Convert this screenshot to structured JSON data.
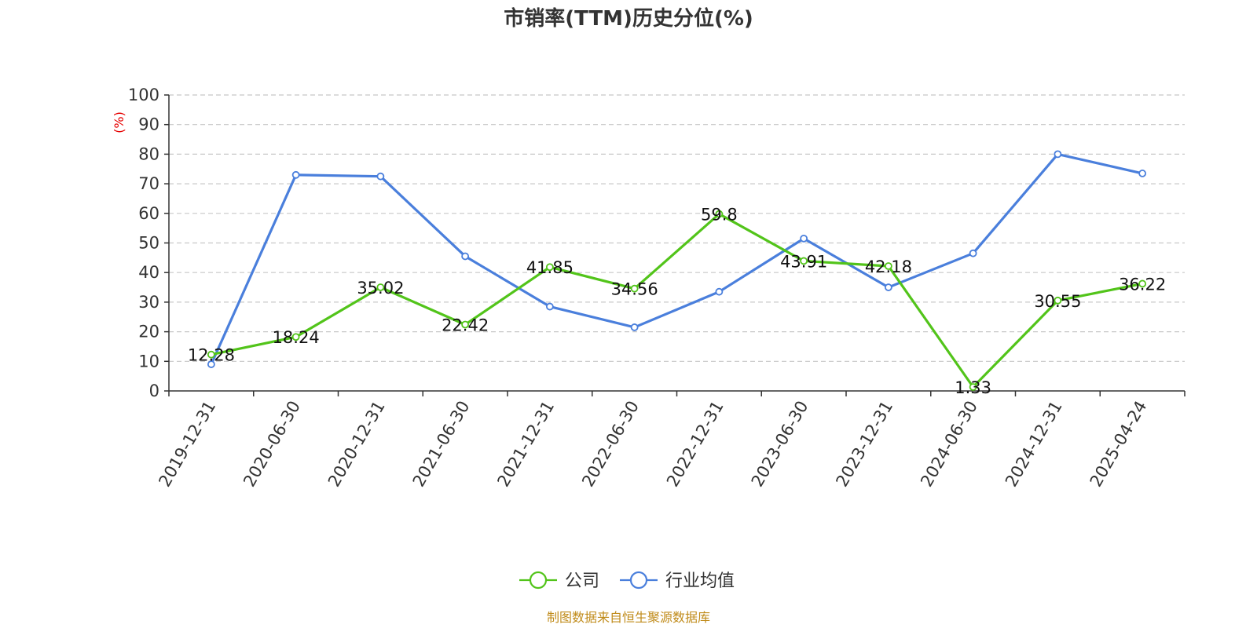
{
  "chart_data": {
    "type": "line",
    "title": "市销率(TTM)历史分位(%)",
    "ylabel": "(%)",
    "xlabel": "",
    "ylim": [
      0,
      100
    ],
    "yticks": [
      0,
      10,
      20,
      30,
      40,
      50,
      60,
      70,
      80,
      90,
      100
    ],
    "categories": [
      "2019-12-31",
      "2020-06-30",
      "2020-12-31",
      "2021-06-30",
      "2021-12-31",
      "2022-06-30",
      "2022-12-31",
      "2023-06-30",
      "2023-12-31",
      "2024-06-30",
      "2024-12-31",
      "2025-04-24"
    ],
    "grid": true,
    "legend_position": "bottom",
    "series": [
      {
        "name": "公司",
        "color": "#52c41a",
        "values": [
          12.28,
          18.24,
          35.02,
          22.42,
          41.85,
          34.56,
          59.8,
          43.91,
          42.18,
          1.33,
          30.55,
          36.22
        ],
        "labels": [
          "12.28",
          "18.24",
          "35.02",
          "22.42",
          "41.85",
          "34.56",
          "59.8",
          "43.91",
          "42.18",
          "1.33",
          "30.55",
          "36.22"
        ],
        "show_labels": true
      },
      {
        "name": "行业均值",
        "color": "#4a7fdc",
        "values": [
          9.0,
          73.0,
          72.5,
          45.5,
          28.5,
          21.5,
          33.5,
          51.5,
          35.0,
          46.5,
          80.0,
          73.5
        ],
        "show_labels": false
      }
    ]
  },
  "footer": {
    "source": "制图数据来自恒生聚源数据库",
    "source_color": "#c08b1a"
  }
}
